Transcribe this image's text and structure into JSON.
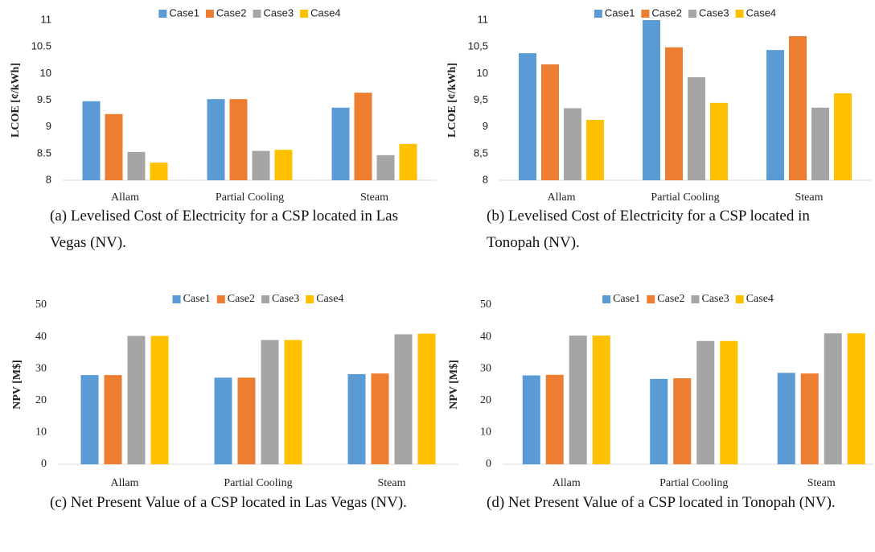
{
  "chart_data": [
    {
      "type": "bar",
      "y_label": "LCOE [¢/kWh]",
      "caption": "(a) Levelised Cost of Electricity for a CSP located in Las Vegas (NV).",
      "categories": [
        "Allam",
        "Partial Cooling",
        "Steam"
      ],
      "series": [
        {
          "name": "Case1",
          "color": "#5b9bd5",
          "values": [
            9.48,
            9.52,
            9.36
          ]
        },
        {
          "name": "Case2",
          "color": "#ed7d31",
          "values": [
            9.24,
            9.52,
            9.64
          ]
        },
        {
          "name": "Case3",
          "color": "#a5a5a5",
          "values": [
            8.53,
            8.55,
            8.47
          ]
        },
        {
          "name": "Case4",
          "color": "#ffc000",
          "values": [
            8.33,
            8.57,
            8.68
          ]
        }
      ],
      "ylim": [
        8,
        11
      ],
      "yticks": [
        8,
        8.5,
        9,
        9.5,
        10,
        10.5,
        11
      ],
      "grid": false,
      "legend": "top"
    },
    {
      "type": "bar",
      "y_label": "LCOE [¢/kWh]",
      "caption": "(b) Levelised Cost of Electricity for a CSP located in Tonopah (NV).",
      "categories": [
        "Allam",
        "Partial Cooling",
        "Steam"
      ],
      "series": [
        {
          "name": "Case1",
          "color": "#5b9bd5",
          "values": [
            10.38,
            11.0,
            10.44
          ]
        },
        {
          "name": "Case2",
          "color": "#ed7d31",
          "values": [
            10.17,
            10.49,
            10.7
          ]
        },
        {
          "name": "Case3",
          "color": "#a5a5a5",
          "values": [
            9.35,
            9.93,
            9.36
          ]
        },
        {
          "name": "Case4",
          "color": "#ffc000",
          "values": [
            9.13,
            9.45,
            9.63
          ]
        }
      ],
      "ylim": [
        8,
        11
      ],
      "yticks": [
        8,
        {
          "value": 8.5,
          "label": "8,5"
        },
        9,
        {
          "value": 9.5,
          "label": "9,5"
        },
        10,
        {
          "value": 10.5,
          "label": "10,5"
        },
        11
      ],
      "grid": false,
      "legend": "top"
    },
    {
      "type": "bar",
      "y_label": "NPV [M$]",
      "caption": "(c) Net Present Value of a CSP located in Las Vegas (NV).",
      "categories": [
        "Allam",
        "Partial Cooling",
        "Steam"
      ],
      "series": [
        {
          "name": "Case1",
          "color": "#5b9bd5",
          "values": [
            28.0,
            27.2,
            28.3
          ]
        },
        {
          "name": "Case2",
          "color": "#ed7d31",
          "values": [
            28.0,
            27.2,
            28.5
          ]
        },
        {
          "name": "Case3",
          "color": "#a5a5a5",
          "values": [
            40.3,
            39.0,
            40.8
          ]
        },
        {
          "name": "Case4",
          "color": "#ffc000",
          "values": [
            40.3,
            39.0,
            41.0
          ]
        }
      ],
      "ylim": [
        0,
        50
      ],
      "yticks": [
        0,
        10,
        20,
        30,
        40,
        50
      ],
      "grid": false,
      "legend": "top"
    },
    {
      "type": "bar",
      "y_label": "NPV [M$]",
      "caption": "(d) Net Present Value of a CSP located in Tonopah (NV).",
      "categories": [
        "Allam",
        "Partial Cooling",
        "Steam"
      ],
      "series": [
        {
          "name": "Case1",
          "color": "#5b9bd5",
          "values": [
            27.9,
            26.8,
            28.7
          ]
        },
        {
          "name": "Case2",
          "color": "#ed7d31",
          "values": [
            28.1,
            27.0,
            28.5
          ]
        },
        {
          "name": "Case3",
          "color": "#a5a5a5",
          "values": [
            40.4,
            38.7,
            41.1
          ]
        },
        {
          "name": "Case4",
          "color": "#ffc000",
          "values": [
            40.4,
            38.7,
            41.1
          ]
        }
      ],
      "ylim": [
        0,
        50
      ],
      "yticks": [
        0,
        10,
        20,
        30,
        40,
        50
      ],
      "grid": false,
      "legend": "top"
    }
  ]
}
